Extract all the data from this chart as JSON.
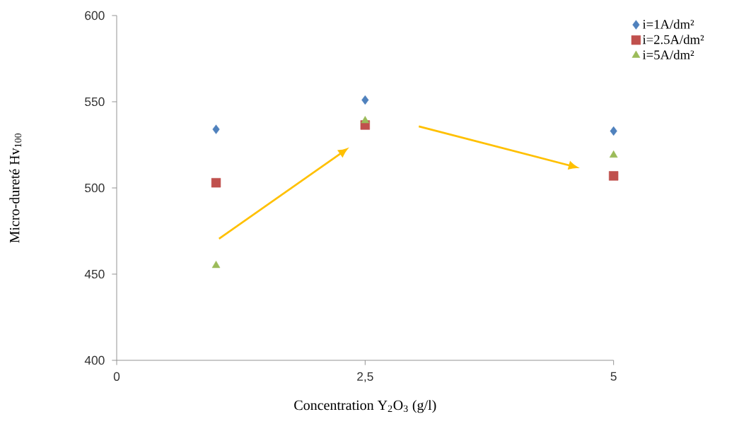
{
  "chart_data": {
    "type": "scatter",
    "xlabel": "Concentration Y$_{2}$O$_{3}$ (g/l)",
    "ylabel": "Micro-dureté Hv$_{100}$",
    "x": [
      1,
      2.5,
      5
    ],
    "series": [
      {
        "name": "i=1A/dm²",
        "color": "#4f81bd",
        "marker": "diamond",
        "values": [
          534,
          551,
          533
        ]
      },
      {
        "name": "i=2.5A/dm²",
        "color": "#c0504d",
        "marker": "square",
        "values": [
          503,
          536.5,
          507
        ]
      },
      {
        "name": "i=5A/dm²",
        "color": "#9bbb59",
        "marker": "triangle",
        "values": [
          455,
          539,
          519
        ]
      }
    ],
    "xlim": [
      0,
      5
    ],
    "ylim": [
      400,
      600
    ],
    "xticks": [
      0,
      {
        "value": 2.5,
        "label": "2,5"
      },
      5
    ],
    "yticks": [
      400,
      450,
      500,
      550,
      600
    ],
    "grid": false,
    "legend": "top right"
  }
}
